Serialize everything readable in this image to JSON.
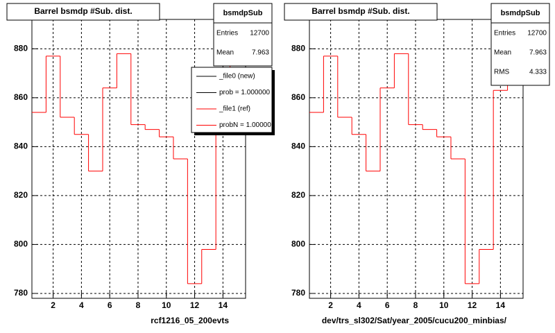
{
  "chart_data": [
    {
      "type": "histogram",
      "title": "Barrel bsmdp #Sub. dist.",
      "x_label": "rcf1216_05_200evts",
      "bins": [
        0.5,
        1.5,
        2.5,
        3.5,
        4.5,
        5.5,
        6.5,
        7.5,
        8.5,
        9.5,
        10.5,
        11.5,
        12.5,
        13.5,
        14.5,
        15.5
      ],
      "series": [
        {
          "color": "#ff0000",
          "values": [
            854,
            877,
            852,
            845,
            830,
            864,
            878,
            849,
            847,
            844,
            835,
            784,
            798,
            863,
            880
          ]
        }
      ],
      "xlim": [
        0.5,
        15.6
      ],
      "xticks": [
        2,
        4,
        6,
        8,
        10,
        12,
        14
      ],
      "ylim": [
        778,
        892
      ],
      "yticks": [
        780,
        800,
        820,
        840,
        860,
        880
      ],
      "grid": true,
      "stats": {
        "title": "bsmdpSub",
        "rows": [
          {
            "label": "Entries",
            "value": 12700
          },
          {
            "label": "Mean",
            "value": 7.963
          }
        ]
      },
      "legend": [
        {
          "label": "_file0 (new)",
          "color": "#000000"
        },
        {
          "label": "prob = 1.000000",
          "color": "#000000"
        },
        {
          "label": "_file1 (ref)",
          "color": "#ff0000"
        },
        {
          "label": "probN = 1.00000",
          "color": "#ff0000"
        }
      ]
    },
    {
      "type": "histogram",
      "title": "Barrel bsmdp #Sub. dist.",
      "x_label": "dev/trs_sl302/Sat/year_2005/cucu200_minbias/",
      "bins": [
        0.5,
        1.5,
        2.5,
        3.5,
        4.5,
        5.5,
        6.5,
        7.5,
        8.5,
        9.5,
        10.5,
        11.5,
        12.5,
        13.5,
        14.5,
        15.5
      ],
      "series": [
        {
          "color": "#ff0000",
          "values": [
            854,
            877,
            852,
            845,
            830,
            864,
            878,
            849,
            847,
            844,
            835,
            784,
            798,
            863,
            880
          ]
        }
      ],
      "xlim": [
        0.5,
        15.6
      ],
      "xticks": [
        2,
        4,
        6,
        8,
        10,
        12,
        14
      ],
      "ylim": [
        778,
        892
      ],
      "yticks": [
        780,
        800,
        820,
        840,
        860,
        880
      ],
      "grid": true,
      "stats": {
        "title": "bsmdpSub",
        "rows": [
          {
            "label": "Entries",
            "value": 12700
          },
          {
            "label": "Mean",
            "value": 7.963
          },
          {
            "label": "RMS",
            "value": 4.333
          }
        ]
      }
    }
  ]
}
